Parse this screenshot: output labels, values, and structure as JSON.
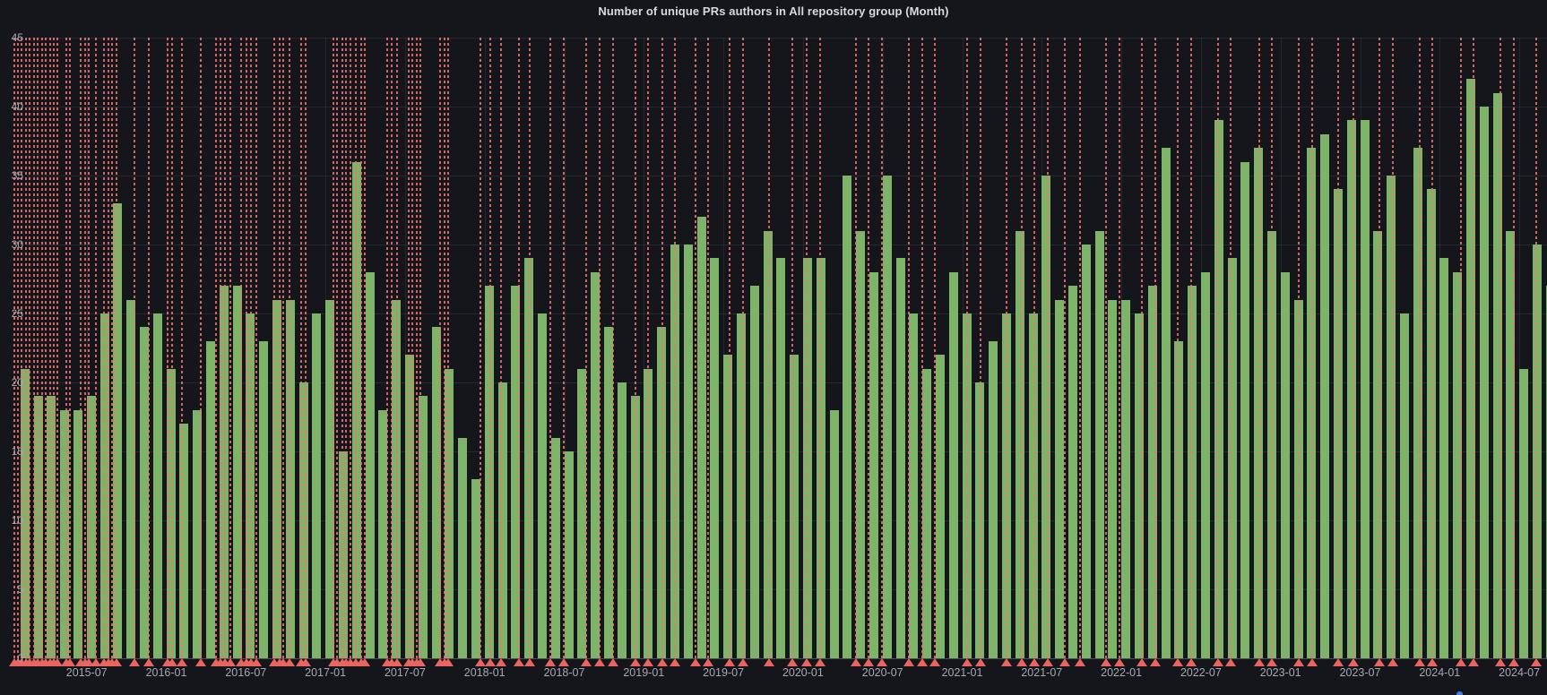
{
  "panel": {
    "title": "Number of unique PRs authors in All repository group (Month)"
  },
  "chart_data": {
    "type": "bar",
    "title": "Number of unique PRs authors in All repository group (Month)",
    "xlabel": "",
    "ylabel": "",
    "ylim": [
      0,
      45
    ],
    "grid": true,
    "legend": false,
    "y_tick_labels": [
      "0",
      "5",
      "10",
      "15",
      "20",
      "25",
      "30",
      "35",
      "40",
      "45"
    ],
    "x_tick_labels": [
      "2015-07",
      "2016-01",
      "2016-07",
      "2017-01",
      "2017-07",
      "2018-01",
      "2018-07",
      "2019-01",
      "2019-07",
      "2020-01",
      "2020-07",
      "2021-01",
      "2021-07",
      "2022-01",
      "2022-07",
      "2023-01",
      "2023-07",
      "2024-01",
      "2024-07"
    ],
    "x_tick_start_bar_index": 5,
    "x_tick_interval_bars": 6,
    "start_month": "2015-02",
    "end_month": "2024-09",
    "values": [
      21,
      19,
      19,
      18,
      18,
      19,
      25,
      33,
      26,
      24,
      25,
      21,
      17,
      18,
      23,
      27,
      27,
      25,
      23,
      26,
      26,
      20,
      25,
      26,
      15,
      36,
      28,
      18,
      26,
      22,
      19,
      24,
      21,
      16,
      13,
      27,
      20,
      27,
      29,
      25,
      16,
      15,
      21,
      28,
      24,
      20,
      19,
      21,
      24,
      30,
      30,
      32,
      29,
      22,
      25,
      27,
      31,
      29,
      22,
      29,
      29,
      18,
      35,
      31,
      28,
      35,
      29,
      25,
      21,
      22,
      28,
      25,
      20,
      23,
      25,
      31,
      25,
      35,
      26,
      27,
      30,
      31,
      26,
      26,
      25,
      27,
      37,
      23,
      27,
      28,
      39,
      29,
      36,
      37,
      31,
      28,
      26,
      37,
      38,
      34,
      39,
      39,
      31,
      35,
      25,
      37,
      34,
      29,
      28,
      42,
      40,
      41,
      31,
      21,
      30,
      27
    ],
    "annotations_month_positions": [
      -0.5,
      -0.25,
      0.05,
      0.35,
      0.65,
      0.95,
      1.25,
      1.55,
      1.85,
      2.15,
      2.45,
      2.75,
      3.4,
      3.65,
      4.5,
      4.8,
      5.1,
      5.6,
      6.25,
      6.55,
      6.85,
      7.15,
      8.5,
      9.6,
      11.05,
      11.4,
      12.1,
      13.5,
      14.7,
      15.0,
      15.35,
      15.75,
      16.55,
      16.95,
      17.3,
      17.7,
      19.1,
      19.45,
      19.75,
      20.2,
      21.1,
      21.45,
      23.5,
      23.8,
      24.2,
      24.5,
      24.85,
      25.2,
      25.6,
      25.9,
      27.6,
      27.9,
      28.3,
      29.2,
      29.5,
      29.8,
      30.1,
      31.6,
      31.9,
      32.2,
      34.6,
      35.35,
      36.2,
      37.5,
      38.3,
      39.9,
      40.9,
      42.6,
      43.6,
      44.6,
      46.3,
      47.25,
      48.3,
      49.3,
      50.8,
      51.8,
      53.4,
      54.4,
      56.4,
      58.1,
      59.2,
      60.2,
      62.9,
      63.9,
      64.9,
      66.9,
      67.9,
      68.9,
      71.3,
      72.3,
      74.3,
      75.4,
      76.4,
      77.4,
      78.7,
      79.8,
      81.8,
      82.8,
      84.5,
      85.5,
      87.2,
      88.2,
      90.2,
      91.2,
      93.3,
      94.3,
      96.3,
      97.3,
      99.3,
      100.4,
      102.4,
      103.4,
      105.4,
      106.4,
      108.5,
      109.5,
      111.5,
      112.5,
      114.2
    ],
    "colors": {
      "background": "#14161b",
      "bar": "#7db469",
      "grid": "#2a2d33",
      "axis_text": "#a6aab1",
      "title_text": "#d8dade",
      "annotation_line": "#f27371",
      "annotation_marker": "#ea6460",
      "clipped_blue_marker": "#3e7de0"
    }
  }
}
